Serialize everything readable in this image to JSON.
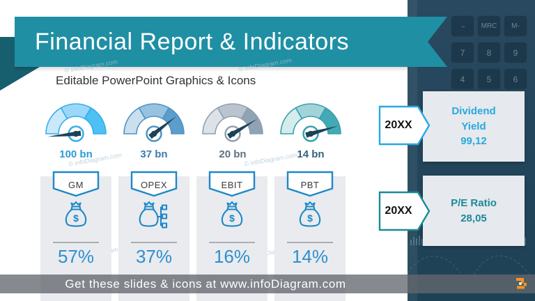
{
  "slide": {
    "title": "Financial Report & Indicators",
    "subtitle": "Editable PowerPoint Graphics & Icons",
    "watermark_text": "© infoDiagram.com"
  },
  "chart_data": {
    "type": "gauge-kpi-dashboard",
    "gauges": [
      {
        "label": "100 bn",
        "needle_deg": 186,
        "segments": [
          "#c9e9fb",
          "#9bd7f8",
          "#4dc0f4"
        ],
        "outline": "#33aeea",
        "label_color": "#2b9cd8"
      },
      {
        "label": "37 bn",
        "needle_deg": 38,
        "segments": [
          "#cbdfef",
          "#97c2e0",
          "#5c9dcb"
        ],
        "outline": "#4e93c6",
        "label_color": "#3c7cb0"
      },
      {
        "label": "20 bn",
        "needle_deg": 31,
        "segments": [
          "#dce2e7",
          "#b9c4ce",
          "#8fa3b4"
        ],
        "outline": "#8fa0b0",
        "label_color": "#5d7183"
      },
      {
        "label": "14 bn",
        "needle_deg": 16,
        "segments": [
          "#d5eced",
          "#a3d3d8",
          "#43a9b5"
        ],
        "outline": "#35a1ad",
        "label_color": "#33617d"
      }
    ],
    "needle_color": "#1c4258",
    "kpis": [
      {
        "label": "GM",
        "value": "57%",
        "icon": "money-bag-dollar-icon"
      },
      {
        "label": "OPEX",
        "value": "37%",
        "icon": "money-bag-structure-icon"
      },
      {
        "label": "EBIT",
        "value": "16%",
        "icon": "money-bag-dollar-icon"
      },
      {
        "label": "PBT",
        "value": "14%",
        "icon": "money-bag-dollar-icon"
      }
    ],
    "side_indicators": [
      {
        "year": "20XX",
        "name": "Dividend Yield",
        "value": "99,12",
        "accent": "#29a8e0"
      },
      {
        "year": "20XX",
        "name": "P/E Ratio",
        "value": "28,05",
        "accent": "#1b8a99"
      }
    ]
  },
  "calculator": {
    "keys": [
      "→",
      "MRC",
      "M-",
      "7",
      "8",
      "9",
      "4",
      "5",
      "6"
    ]
  },
  "footer": {
    "text": "Get these slides & icons at www.infoDiagram.com"
  },
  "colors": {
    "banner": "#1f8fa4",
    "banner_fold": "#175e6f",
    "kpi_accent": "#1e88c7",
    "kpi_value": "#2e8fd0",
    "panel": "#24465c",
    "card_bg": "#e6e9ed",
    "logo_orange": "#f7941e"
  }
}
